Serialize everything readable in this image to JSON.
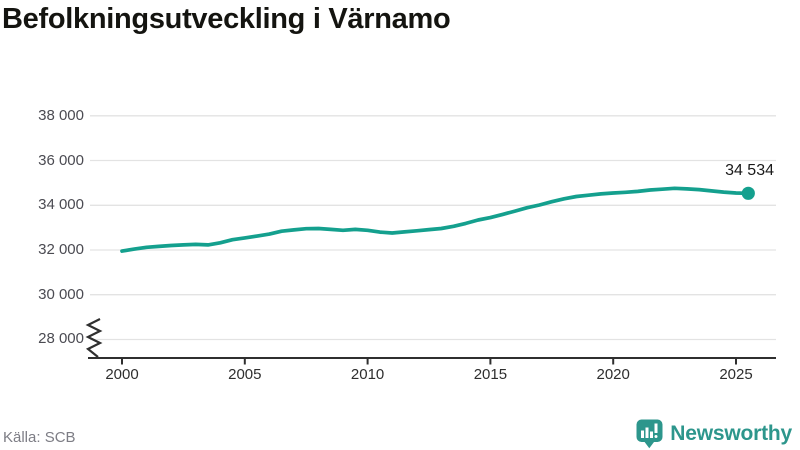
{
  "header": {
    "title": "Befolkningsutveckling i Värnamo"
  },
  "source": {
    "label": "Källa: SCB"
  },
  "brand": {
    "name": "Newsworthy",
    "color": "#2d968c",
    "icon": "newsworthy-bar-chart-bubble-icon"
  },
  "colors": {
    "line": "#14a08e",
    "grid": "#e3e3e3",
    "axis": "#2f2f2f",
    "title": "#141410",
    "y_label": "#4b4b52",
    "x_label": "#2e2e2e",
    "end_label": "#1a1a1a",
    "source_text": "#7d7d85",
    "brand": "#2d968c"
  },
  "chart_data": {
    "type": "line",
    "title": "Befolkningsutveckling i Värnamo",
    "xlabel": "",
    "ylabel": "",
    "grid": "horizontal",
    "legend": "none",
    "y_axis_break": true,
    "ylim": [
      28000,
      38600
    ],
    "xlim": [
      1998.7,
      2026.6
    ],
    "y_ticks": [
      "38 000",
      "36 000",
      "34 000",
      "32 000",
      "30 000",
      "28 000"
    ],
    "y_tick_values": [
      38000,
      36000,
      34000,
      32000,
      30000,
      28000
    ],
    "x_ticks": [
      "2000",
      "2005",
      "2010",
      "2015",
      "2020",
      "2025"
    ],
    "x_tick_values": [
      2000,
      2005,
      2010,
      2015,
      2020,
      2025
    ],
    "end_label": "34 534",
    "end_value": 34534,
    "x": [
      2000.0,
      2000.5,
      2001.0,
      2001.5,
      2002.0,
      2002.5,
      2003.0,
      2003.5,
      2004.0,
      2004.5,
      2005.0,
      2005.5,
      2006.0,
      2006.5,
      2007.0,
      2007.5,
      2008.0,
      2008.5,
      2009.0,
      2009.5,
      2010.0,
      2010.5,
      2011.0,
      2011.5,
      2012.0,
      2012.5,
      2013.0,
      2013.5,
      2014.0,
      2014.5,
      2015.0,
      2015.5,
      2016.0,
      2016.5,
      2017.0,
      2017.5,
      2018.0,
      2018.5,
      2019.0,
      2019.5,
      2020.0,
      2020.5,
      2021.0,
      2021.5,
      2022.0,
      2022.5,
      2023.0,
      2023.5,
      2024.0,
      2024.5,
      2025.0,
      2025.5
    ],
    "values": [
      31950,
      32040,
      32120,
      32160,
      32200,
      32230,
      32250,
      32230,
      32320,
      32460,
      32540,
      32620,
      32710,
      32840,
      32900,
      32950,
      32960,
      32920,
      32880,
      32920,
      32880,
      32800,
      32760,
      32810,
      32860,
      32910,
      32960,
      33060,
      33190,
      33340,
      33450,
      33590,
      33740,
      33890,
      34010,
      34160,
      34290,
      34390,
      34450,
      34510,
      34550,
      34580,
      34620,
      34680,
      34720,
      34760,
      34730,
      34700,
      34640,
      34590,
      34550,
      34534
    ]
  }
}
